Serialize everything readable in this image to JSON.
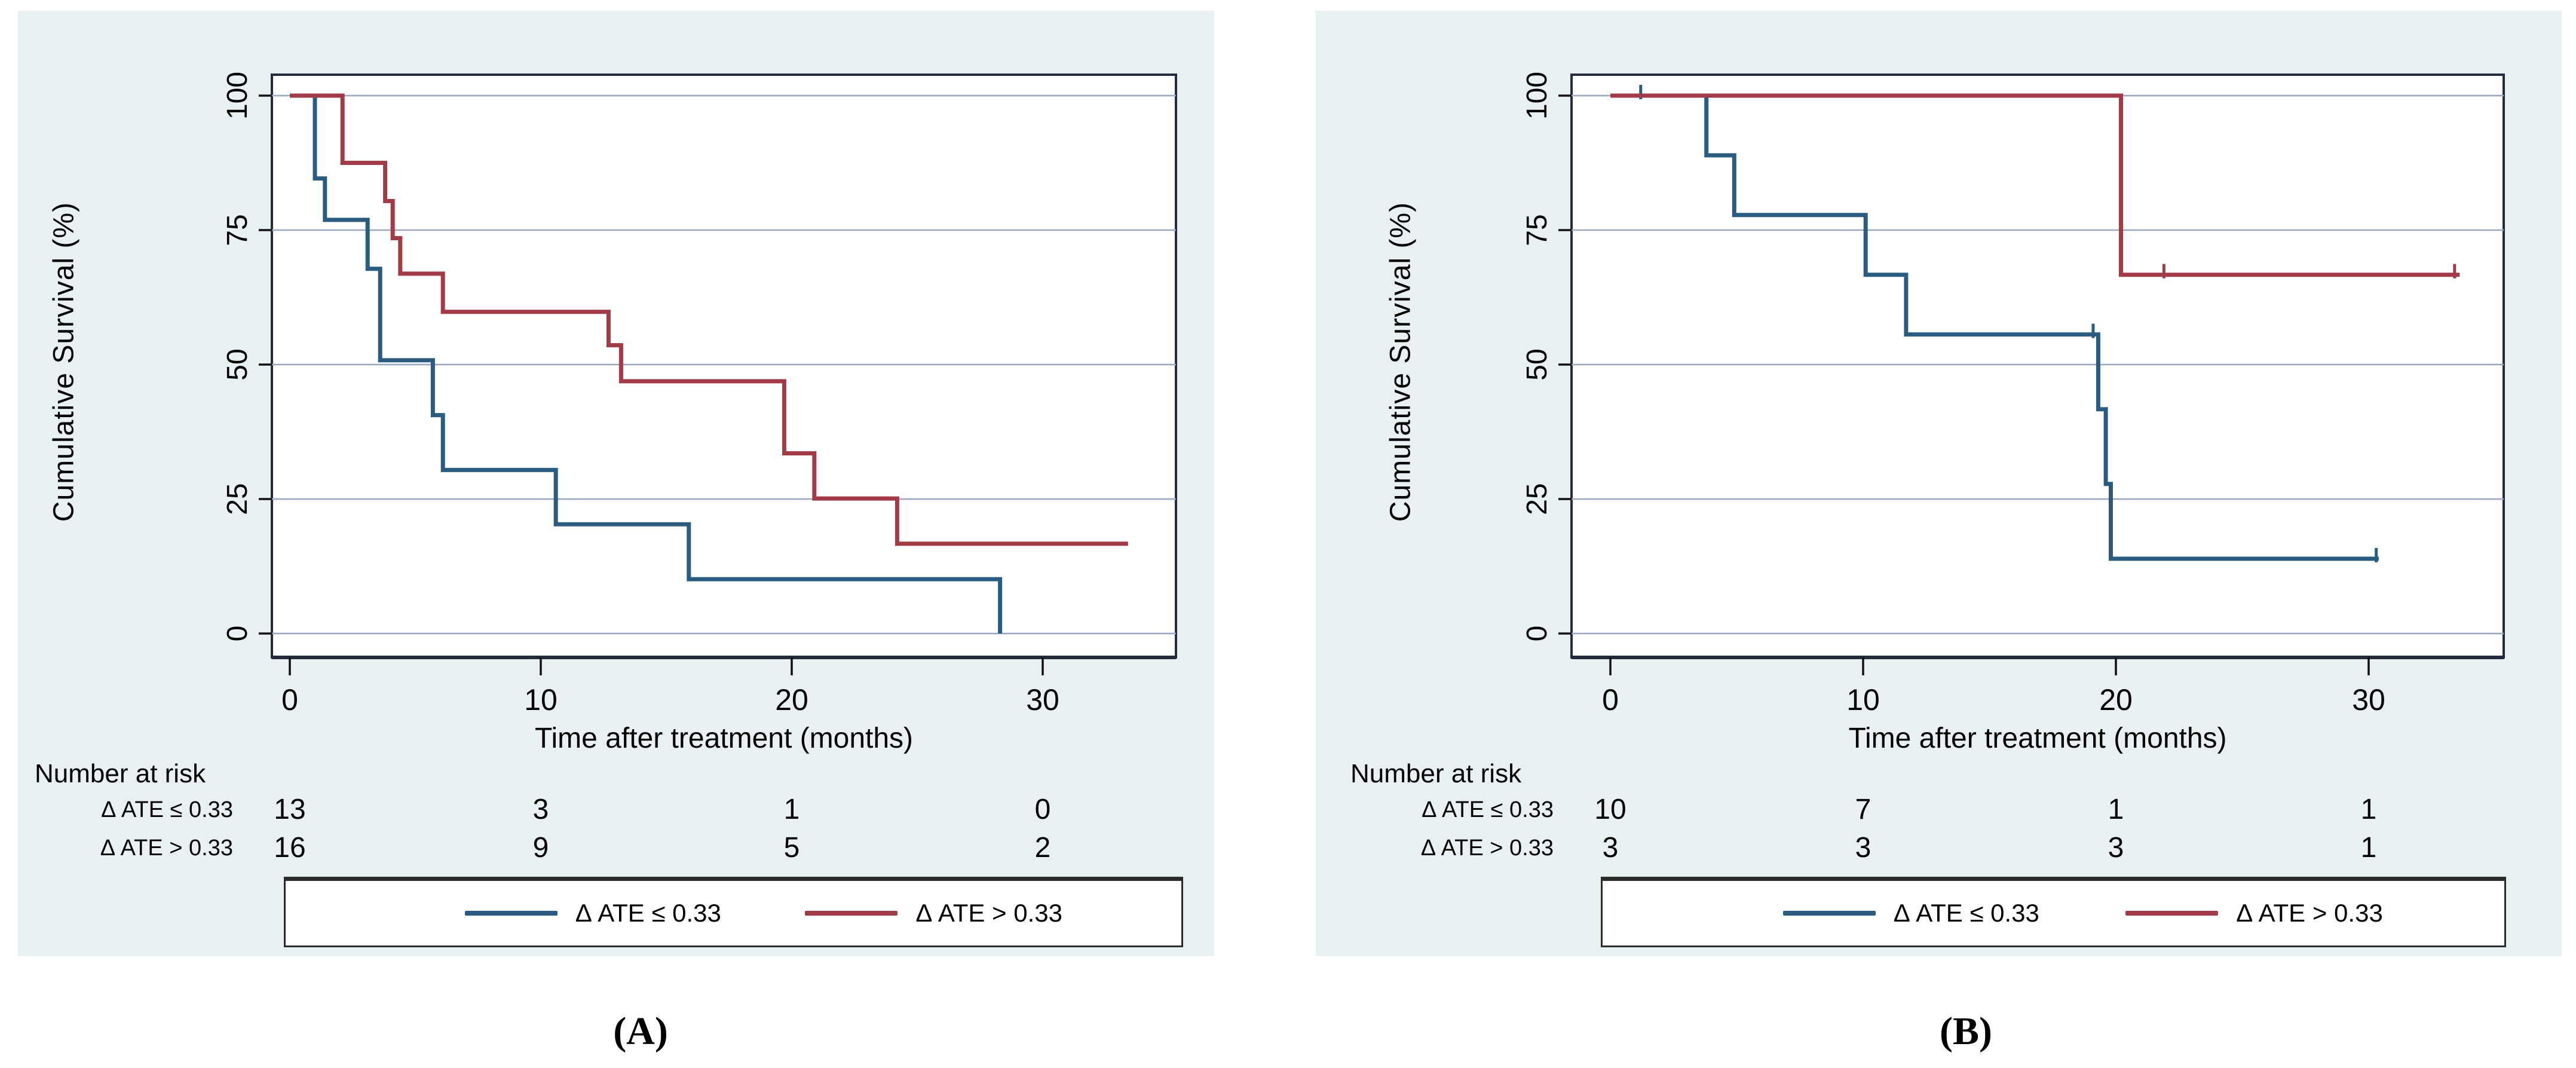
{
  "figure": {
    "panels": [
      {
        "id": "A",
        "caption": "(A)",
        "ylabel": "Cumulative Survival (%)",
        "xlabel": "Time after treatment (months)",
        "number_at_risk_header": "Number at risk",
        "risk_row1_label": "Δ ATE ≤ 0.33",
        "risk_row2_label": "Δ ATE > 0.33",
        "legend": [
          {
            "label": "Δ ATE ≤ 0.33",
            "color": "#2b5c80"
          },
          {
            "label": "Δ ATE > 0.33",
            "color": "#a23b48"
          }
        ]
      },
      {
        "id": "B",
        "caption": "(B)",
        "ylabel": "Cumulative Survival (%)",
        "xlabel": "Time after treatment (months)",
        "number_at_risk_header": "Number at risk",
        "risk_row1_label": "Δ ATE ≤ 0.33",
        "risk_row2_label": "Δ ATE > 0.33",
        "legend": [
          {
            "label": "Δ ATE ≤ 0.33",
            "color": "#2b5c80"
          },
          {
            "label": "Δ ATE > 0.33",
            "color": "#a23b48"
          }
        ]
      }
    ],
    "colors": {
      "panel_background": "#e8f0f2",
      "plot_background": "#ffffff",
      "gridline": "#9aa5be",
      "frame": "#232c3d",
      "tick": "#111111",
      "blue_series": "#2b5c80",
      "red_series": "#a23b48"
    }
  },
  "chart_data": [
    {
      "type": "line",
      "subtype": "kaplan-meier-step",
      "panel": "A",
      "title": "",
      "xlabel": "Time after treatment (months)",
      "ylabel": "Cumulative Survival (%)",
      "xlim": [
        0,
        35.3
      ],
      "ylim": [
        0,
        100
      ],
      "xticks": [
        0,
        10,
        20,
        30
      ],
      "yticks": [
        100,
        75,
        50,
        25,
        0
      ],
      "grid": "horizontal",
      "legend_position": "bottom",
      "series": [
        {
          "name": "Δ ATE ≤ 0.33",
          "color": "#2b5c80",
          "step": true,
          "points": [
            [
              0,
              100
            ],
            [
              1,
              100
            ],
            [
              1,
              84.6
            ],
            [
              1.4,
              84.6
            ],
            [
              1.4,
              76.9
            ],
            [
              3.1,
              76.9
            ],
            [
              3.1,
              67.8
            ],
            [
              3.6,
              67.8
            ],
            [
              3.6,
              50.8
            ],
            [
              5.7,
              50.8
            ],
            [
              5.7,
              40.6
            ],
            [
              6.1,
              40.6
            ],
            [
              6.1,
              30.4
            ],
            [
              10.6,
              30.4
            ],
            [
              10.6,
              20.3
            ],
            [
              15.9,
              20.3
            ],
            [
              15.9,
              10.1
            ],
            [
              28.3,
              10.1
            ],
            [
              28.3,
              0
            ]
          ],
          "censors": []
        },
        {
          "name": "Δ ATE > 0.33",
          "color": "#a23b48",
          "step": true,
          "points": [
            [
              0,
              100
            ],
            [
              2.1,
              100
            ],
            [
              2.1,
              87.5
            ],
            [
              3.8,
              87.5
            ],
            [
              3.8,
              80.4
            ],
            [
              4.1,
              80.4
            ],
            [
              4.1,
              73.5
            ],
            [
              4.4,
              73.5
            ],
            [
              4.4,
              66.9
            ],
            [
              6.1,
              66.9
            ],
            [
              6.1,
              59.8
            ],
            [
              12.7,
              59.8
            ],
            [
              12.7,
              53.6
            ],
            [
              13.2,
              53.6
            ],
            [
              13.2,
              46.9
            ],
            [
              19.7,
              46.9
            ],
            [
              19.7,
              33.5
            ],
            [
              20.9,
              33.5
            ],
            [
              20.9,
              25.1
            ],
            [
              24.2,
              25.1
            ],
            [
              24.2,
              16.7
            ],
            [
              33.4,
              16.7
            ]
          ],
          "censors": []
        }
      ],
      "number_at_risk": {
        "header": "Number at risk",
        "time_points": [
          0,
          10,
          20,
          30
        ],
        "rows": [
          {
            "label": "Δ ATE ≤ 0.33",
            "values": [
              13,
              3,
              1,
              0
            ]
          },
          {
            "label": "Δ ATE > 0.33",
            "values": [
              16,
              9,
              5,
              2
            ]
          }
        ]
      }
    },
    {
      "type": "line",
      "subtype": "kaplan-meier-step",
      "panel": "B",
      "title": "",
      "xlabel": "Time after treatment (months)",
      "ylabel": "Cumulative Survival (%)",
      "xlim": [
        0,
        35.3
      ],
      "ylim": [
        0,
        100
      ],
      "xticks": [
        0,
        10,
        20,
        30
      ],
      "yticks": [
        100,
        75,
        50,
        25,
        0
      ],
      "grid": "horizontal",
      "legend_position": "bottom",
      "series": [
        {
          "name": "Δ ATE ≤ 0.33",
          "color": "#2b5c80",
          "step": true,
          "points": [
            [
              0,
              100
            ],
            [
              3.8,
              100
            ],
            [
              3.8,
              88.9
            ],
            [
              4.9,
              88.9
            ],
            [
              4.9,
              77.8
            ],
            [
              10.1,
              77.8
            ],
            [
              10.1,
              66.7
            ],
            [
              11.7,
              66.7
            ],
            [
              11.7,
              55.6
            ],
            [
              19.3,
              55.6
            ],
            [
              19.3,
              41.7
            ],
            [
              19.6,
              41.7
            ],
            [
              19.6,
              27.8
            ],
            [
              19.8,
              27.8
            ],
            [
              19.8,
              13.9
            ],
            [
              30.4,
              13.9
            ]
          ],
          "censors": [
            [
              1.2,
              100
            ],
            [
              19.1,
              55.6
            ],
            [
              30.3,
              13.9
            ]
          ]
        },
        {
          "name": "Δ ATE > 0.33",
          "color": "#a23b48",
          "step": true,
          "points": [
            [
              0,
              100
            ],
            [
              20.2,
              100
            ],
            [
              20.2,
              66.7
            ],
            [
              33.6,
              66.7
            ]
          ],
          "censors": [
            [
              21.9,
              66.7
            ],
            [
              33.4,
              66.7
            ]
          ]
        }
      ],
      "number_at_risk": {
        "header": "Number at risk",
        "time_points": [
          0,
          10,
          20,
          30
        ],
        "rows": [
          {
            "label": "Δ ATE ≤ 0.33",
            "values": [
              10,
              7,
              1,
              1
            ]
          },
          {
            "label": "Δ ATE > 0.33",
            "values": [
              3,
              3,
              3,
              1
            ]
          }
        ]
      }
    }
  ]
}
